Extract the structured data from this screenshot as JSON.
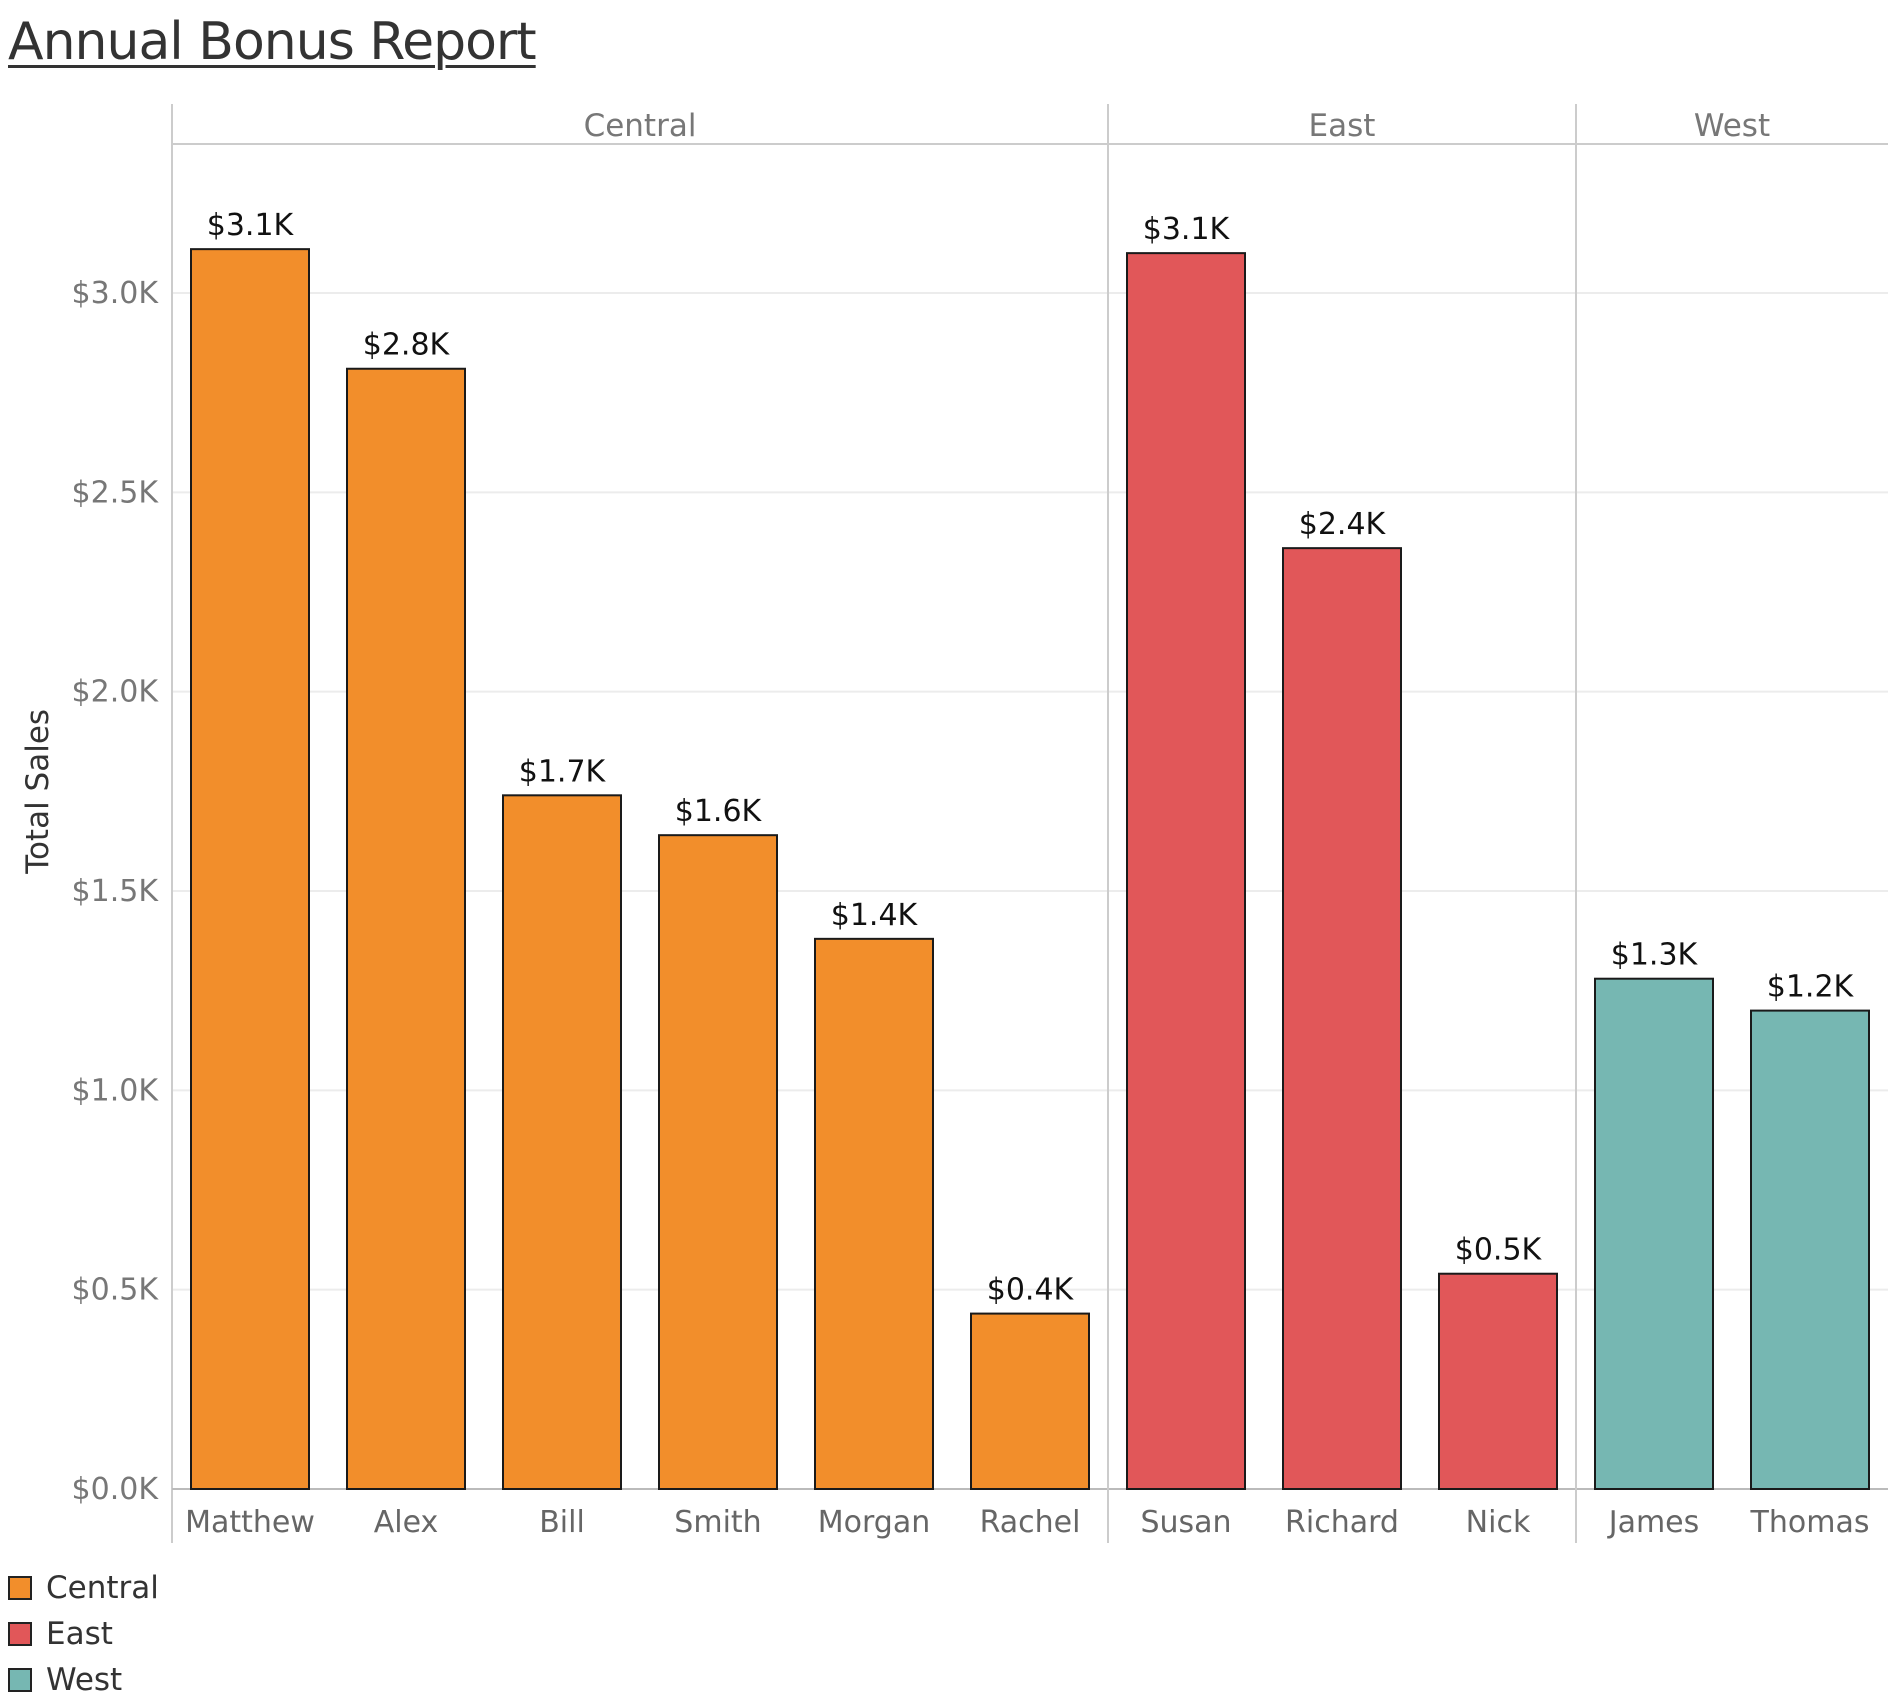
{
  "chart_data": {
    "type": "bar",
    "title": "Annual Bonus Report",
    "ylabel": "Total Sales",
    "xlabel": "",
    "ylim": [
      0,
      3.5
    ],
    "yticks": [
      "$0.0K",
      "$0.5K",
      "$1.0K",
      "$1.5K",
      "$2.0K",
      "$2.5K",
      "$3.0K"
    ],
    "ytick_values": [
      0,
      0.5,
      1.0,
      1.5,
      2.0,
      2.5,
      3.0
    ],
    "grid": true,
    "legend_position": "bottom-left",
    "groups": [
      {
        "name": "Central",
        "color": "#f28e2b",
        "bars": [
          {
            "category": "Matthew",
            "value": 3.11,
            "label": "$3.1K"
          },
          {
            "category": "Alex",
            "value": 2.81,
            "label": "$2.8K"
          },
          {
            "category": "Bill",
            "value": 1.74,
            "label": "$1.7K"
          },
          {
            "category": "Smith",
            "value": 1.64,
            "label": "$1.6K"
          },
          {
            "category": "Morgan",
            "value": 1.38,
            "label": "$1.4K"
          },
          {
            "category": "Rachel",
            "value": 0.44,
            "label": "$0.4K"
          }
        ]
      },
      {
        "name": "East",
        "color": "#e15759",
        "bars": [
          {
            "category": "Susan",
            "value": 3.1,
            "label": "$3.1K"
          },
          {
            "category": "Richard",
            "value": 2.36,
            "label": "$2.4K"
          },
          {
            "category": "Nick",
            "value": 0.54,
            "label": "$0.5K"
          }
        ]
      },
      {
        "name": "West",
        "color": "#76b7b2",
        "bars": [
          {
            "category": "James",
            "value": 1.28,
            "label": "$1.3K"
          },
          {
            "category": "Thomas",
            "value": 1.2,
            "label": "$1.2K"
          }
        ]
      }
    ]
  },
  "legend": {
    "items": [
      {
        "label": "Central",
        "color": "#f28e2b"
      },
      {
        "label": "East",
        "color": "#e15759"
      },
      {
        "label": "West",
        "color": "#76b7b2"
      }
    ]
  }
}
